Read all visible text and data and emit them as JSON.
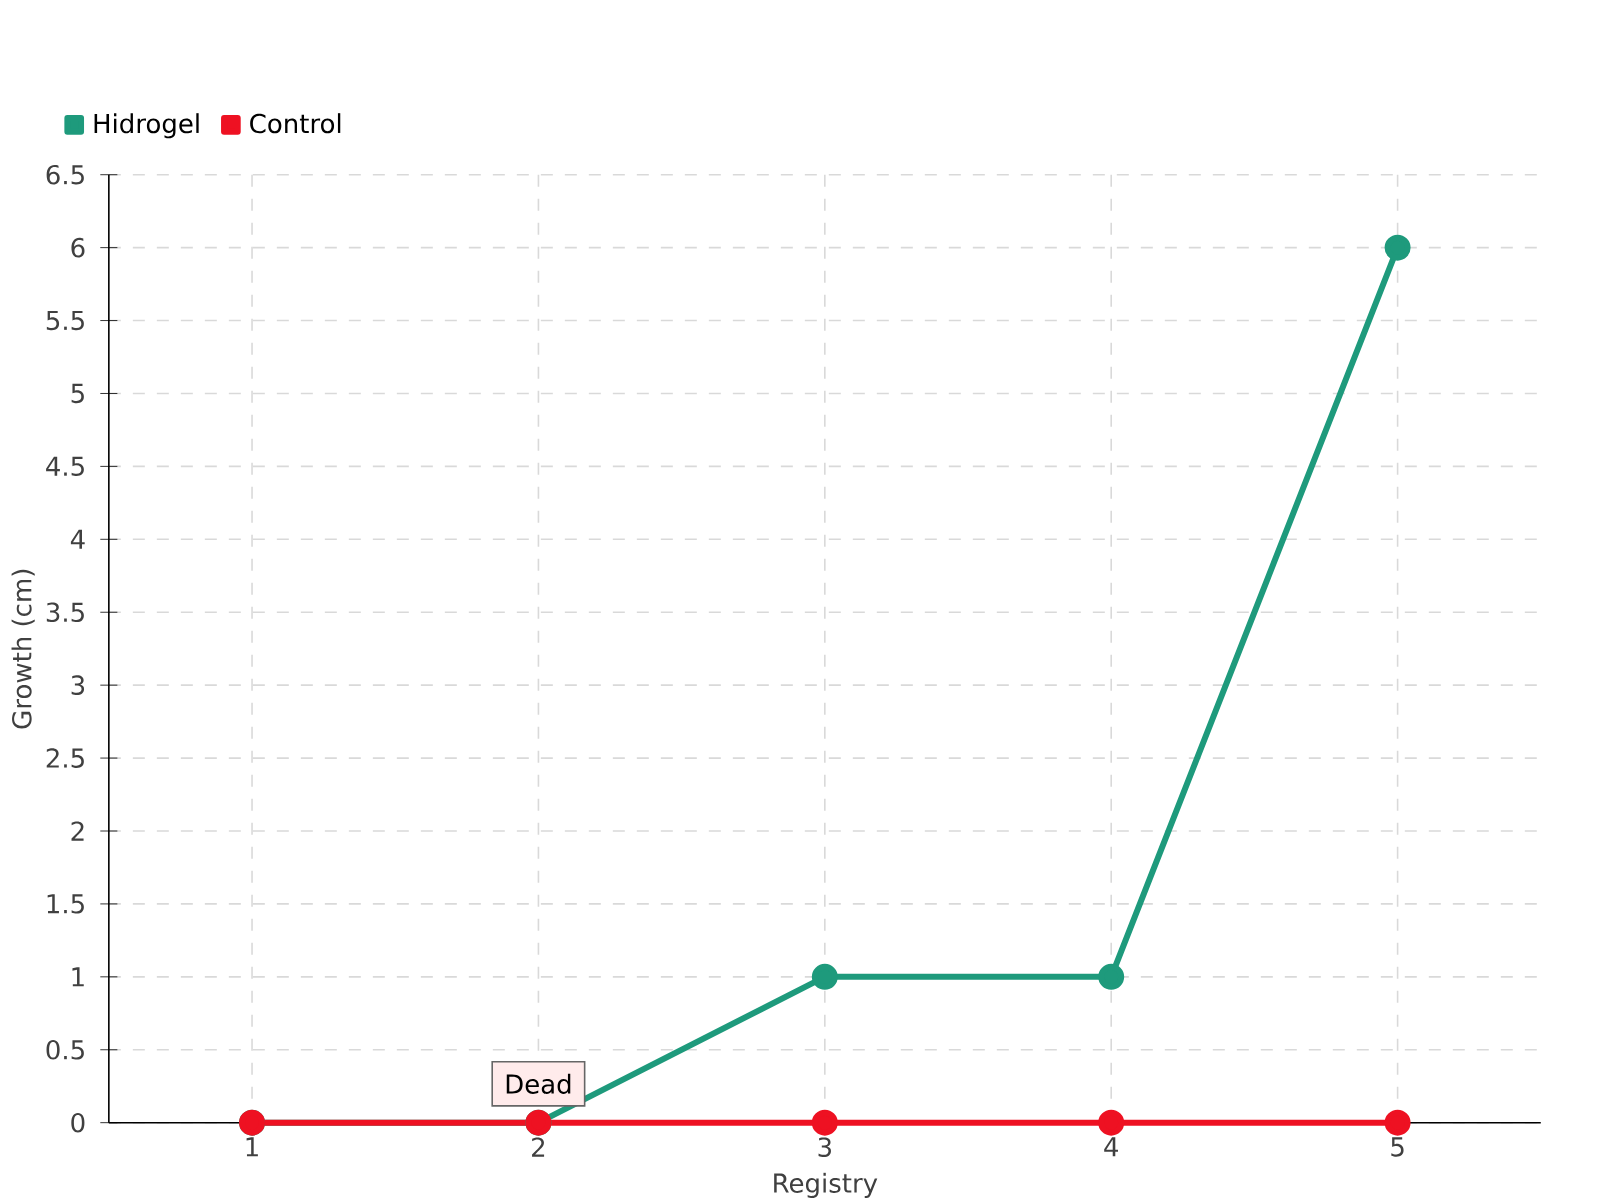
{
  "chart_data": {
    "type": "line",
    "xlabel": "Registry",
    "ylabel": "Growth (cm)",
    "x": [
      1,
      2,
      3,
      4,
      5
    ],
    "series": [
      {
        "name": "Hidrogel",
        "color": "#1e9a7c",
        "values": [
          0,
          0,
          1,
          1,
          6
        ]
      },
      {
        "name": "Control",
        "color": "#ee1122",
        "values": [
          0,
          0,
          0,
          0,
          0
        ]
      }
    ],
    "xlim": [
      0.5,
      5.5
    ],
    "xticks": [
      1,
      2,
      3,
      4,
      5
    ],
    "ylim": [
      0,
      6.5
    ],
    "yticks": [
      0,
      0.5,
      1,
      1.5,
      2,
      2.5,
      3,
      3.5,
      4,
      4.5,
      5,
      5.5,
      6,
      6.5
    ],
    "annotations": [
      {
        "text": "Dead",
        "x": 2,
        "y": 0
      }
    ],
    "grid": true,
    "legend": "top left",
    "marker": "circle",
    "line_style": "solid"
  }
}
